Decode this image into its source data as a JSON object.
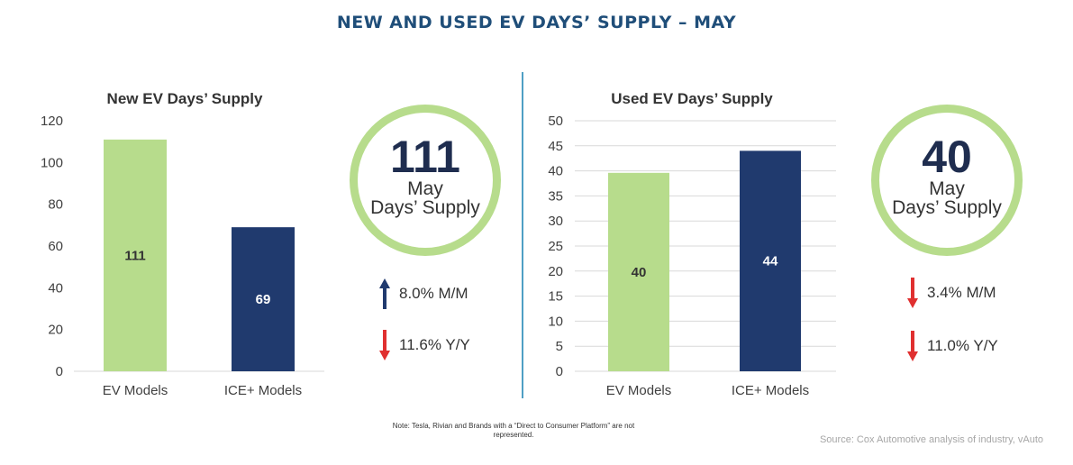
{
  "title": "NEW AND USED EV DAYS’ SUPPLY – MAY",
  "chart_data": [
    {
      "type": "bar",
      "title": "New EV Days’ Supply",
      "categories": [
        "EV Models",
        "ICE+ Models"
      ],
      "values": [
        111,
        69
      ],
      "value_labels": [
        "111",
        "69"
      ],
      "ylim": [
        0,
        120
      ],
      "yticks": [
        "0",
        "20",
        "40",
        "60",
        "80",
        "100",
        "120"
      ],
      "grid": false,
      "colors": [
        "#b7dc8c",
        "#203a6e"
      ],
      "label_colors": [
        "#333333",
        "#ffffff"
      ]
    },
    {
      "type": "bar",
      "title": "Used EV Days’ Supply",
      "categories": [
        "EV Models",
        "ICE+ Models"
      ],
      "values": [
        39.6,
        44
      ],
      "value_labels": [
        "40",
        "44"
      ],
      "ylim": [
        0,
        50
      ],
      "yticks": [
        "0",
        "5",
        "10",
        "15",
        "20",
        "25",
        "30",
        "35",
        "40",
        "45",
        "50"
      ],
      "grid": true,
      "colors": [
        "#b7dc8c",
        "#203a6e"
      ],
      "label_colors": [
        "#333333",
        "#ffffff"
      ]
    }
  ],
  "new_summary": {
    "value": "111",
    "line1": "May",
    "line2": "Days’ Supply",
    "trends": [
      {
        "direction": "up",
        "color": "#203a6e",
        "text": "8.0% M/M"
      },
      {
        "direction": "down",
        "color": "#e03030",
        "text": "11.6% Y/Y"
      }
    ]
  },
  "used_summary": {
    "value": "40",
    "line1": "May",
    "line2": "Days’ Supply",
    "trends": [
      {
        "direction": "down",
        "color": "#e03030",
        "text": "3.4% M/M"
      },
      {
        "direction": "down",
        "color": "#e03030",
        "text": "11.0% Y/Y"
      }
    ]
  },
  "note": "Note: Tesla, Rivian and Brands with a “Direct to Consumer Platform” are not represented.",
  "source": "Source: Cox Automotive analysis of industry, vAuto"
}
